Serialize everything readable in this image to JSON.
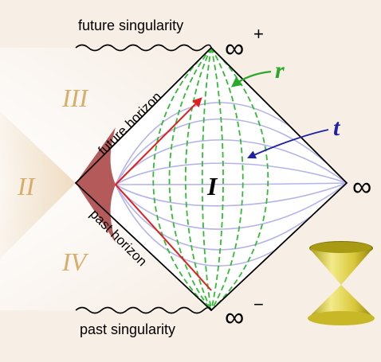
{
  "labels": {
    "future_singularity": "future singularity",
    "past_singularity": "past singularity",
    "future_horizon": "future horizon",
    "past_horizon": "past horizon",
    "inf_plus": "∞",
    "plus_sign": "+",
    "inf_minus": "∞",
    "minus_sign": "−",
    "inf_right": "∞",
    "region_I": "I",
    "region_II": "II",
    "region_III": "III",
    "region_IV": "IV",
    "r_label": "r",
    "t_label": "t"
  },
  "colors": {
    "background": "#f7eee5",
    "diamond_fill": "#ffffff",
    "horizon_wedge": "#b55a5a",
    "constant_r_curves": "#33bb33",
    "constant_t_curves": "#b4b4ea",
    "worldline": "#e02020",
    "r_arrow": "#2aa82a",
    "t_arrow": "#1f1fa8",
    "region_label": "#d8ad6a",
    "light_cone": "#d2c230"
  },
  "icons": {
    "light_cone": "light-cone-icon"
  }
}
